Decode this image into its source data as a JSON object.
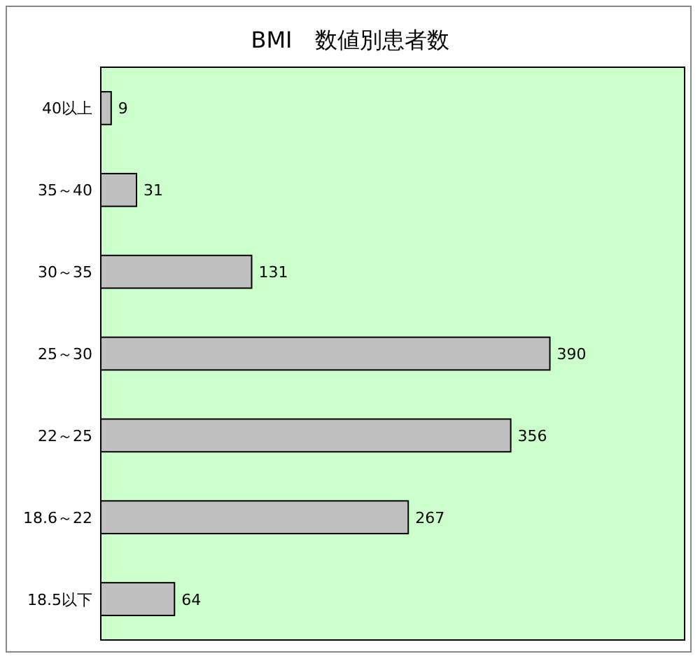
{
  "chart_data": {
    "type": "bar",
    "orientation": "horizontal",
    "title": "BMI　数値別患者数",
    "categories": [
      "40以上",
      "35～40",
      "30～35",
      "25～30",
      "22～25",
      "18.6～22",
      "18.5以下"
    ],
    "values": [
      9,
      31,
      131,
      390,
      356,
      267,
      64
    ],
    "color": "#c0c0c0",
    "data_labels": true
  }
}
